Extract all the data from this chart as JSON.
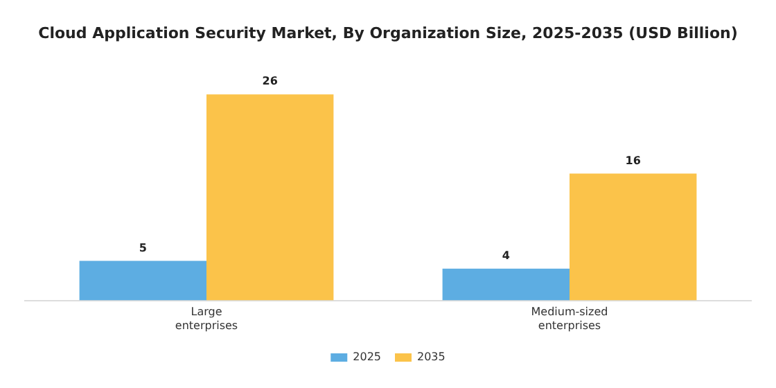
{
  "chart_data": {
    "type": "bar",
    "title": "Cloud Application Security Market, By Organization Size, 2025-2035 (USD Billion)",
    "categories": [
      "Large enterprises",
      "Medium-sized enterprises"
    ],
    "series": [
      {
        "name": "2025",
        "color": "#5dade2",
        "values": [
          5,
          4
        ]
      },
      {
        "name": "2035",
        "color": "#fbc34a",
        "values": [
          26,
          16
        ]
      }
    ],
    "data_labels": true,
    "legend": "bottom",
    "grid": false,
    "tick_labels": "x"
  }
}
